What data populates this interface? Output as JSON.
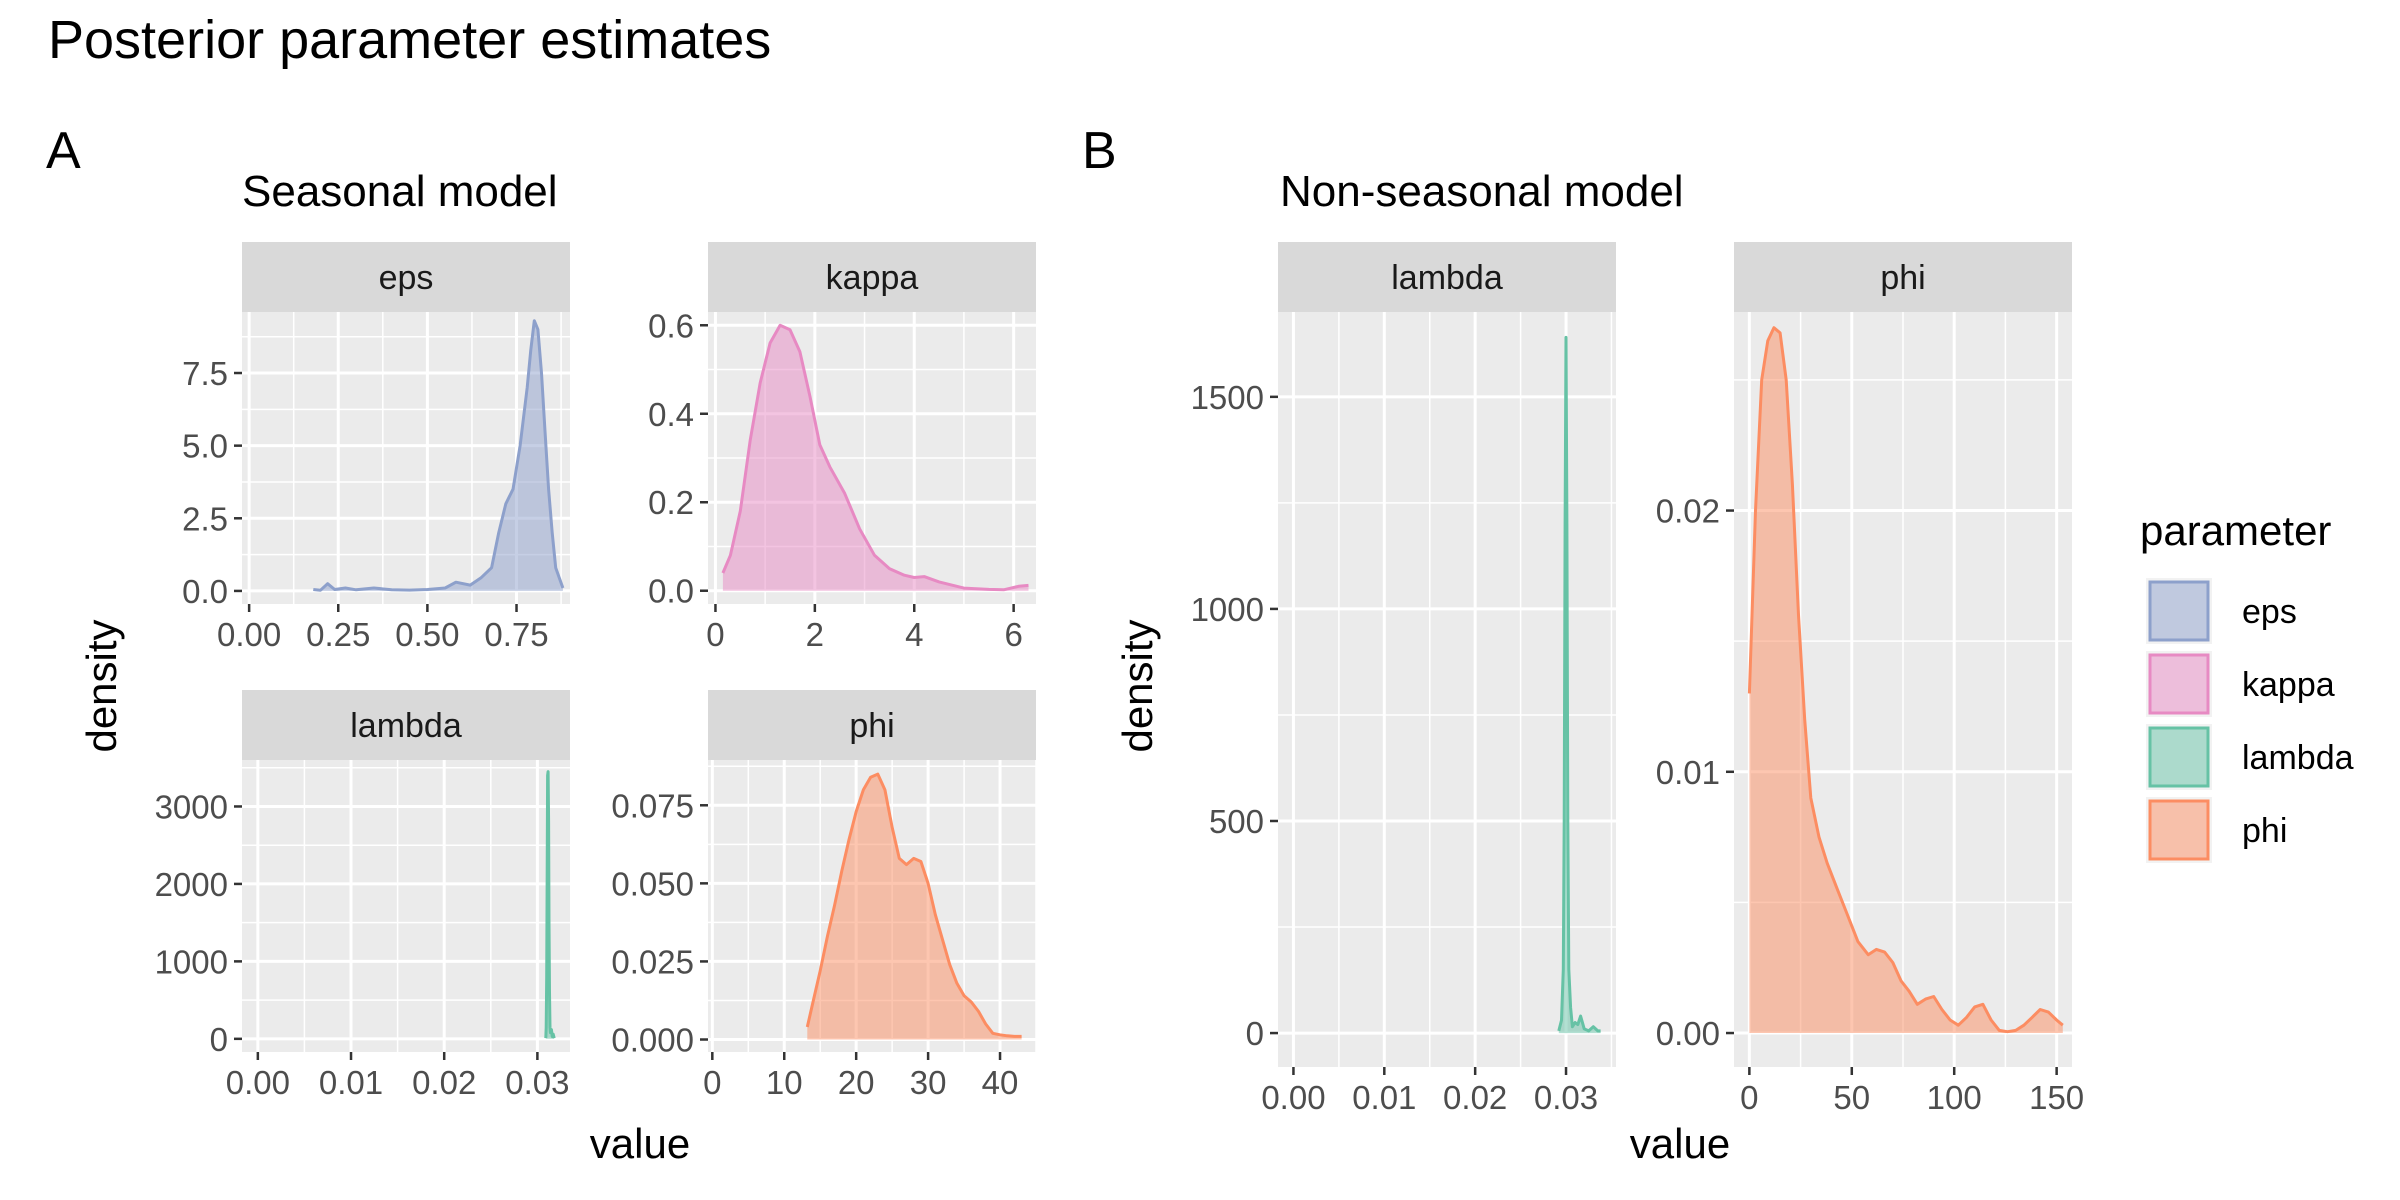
{
  "title": "Posterior parameter estimates",
  "colors": {
    "eps": "#8da0cb",
    "kappa": "#e78ac3",
    "lambda": "#66c2a5",
    "phi": "#fc8d62",
    "panel_bg": "#ebebeb",
    "strip_bg": "#d9d9d9"
  },
  "legend": {
    "title": "parameter",
    "items": [
      "eps",
      "kappa",
      "lambda",
      "phi"
    ]
  },
  "chart_data": [
    {
      "tag": "A",
      "subtitle": "Seasonal model",
      "type": "area",
      "xlabel": "value",
      "ylabel": "density",
      "facets": [
        {
          "strip": "eps",
          "series": "eps",
          "xlim": [
            -0.02,
            0.9
          ],
          "ylim": [
            -0.45,
            9.6
          ],
          "xticks": [
            0,
            0.25,
            0.5,
            0.75
          ],
          "xtick_labels": [
            "0.00",
            "0.25",
            "0.50",
            "0.75"
          ],
          "yticks": [
            0,
            2.5,
            5,
            7.5
          ],
          "ytick_labels": [
            "0.0",
            "2.5",
            "5.0",
            "7.5"
          ],
          "x": [
            0.18,
            0.2,
            0.22,
            0.24,
            0.27,
            0.3,
            0.35,
            0.4,
            0.45,
            0.5,
            0.55,
            0.58,
            0.62,
            0.65,
            0.68,
            0.7,
            0.72,
            0.74,
            0.76,
            0.78,
            0.79,
            0.8,
            0.81,
            0.82,
            0.83,
            0.84,
            0.85,
            0.86,
            0.88
          ],
          "y": [
            0.05,
            0.02,
            0.25,
            0.05,
            0.1,
            0.04,
            0.1,
            0.04,
            0.03,
            0.05,
            0.1,
            0.3,
            0.2,
            0.45,
            0.8,
            2.0,
            3.0,
            3.5,
            5.0,
            7.0,
            8.3,
            9.3,
            9.0,
            7.5,
            5.5,
            3.5,
            2.0,
            0.8,
            0.1
          ]
        },
        {
          "strip": "kappa",
          "series": "kappa",
          "xlim": [
            -0.15,
            6.45
          ],
          "ylim": [
            -0.03,
            0.63
          ],
          "xticks": [
            0,
            2,
            4,
            6
          ],
          "xtick_labels": [
            "0",
            "2",
            "4",
            "6"
          ],
          "yticks": [
            0,
            0.2,
            0.4,
            0.6
          ],
          "ytick_labels": [
            "0.0",
            "0.2",
            "0.4",
            "0.6"
          ],
          "x": [
            0.15,
            0.3,
            0.5,
            0.7,
            0.9,
            1.1,
            1.3,
            1.5,
            1.7,
            1.9,
            2.1,
            2.3,
            2.6,
            2.9,
            3.2,
            3.5,
            3.8,
            4.0,
            4.2,
            4.5,
            5.0,
            5.5,
            5.8,
            6.1,
            6.3
          ],
          "y": [
            0.04,
            0.08,
            0.18,
            0.34,
            0.47,
            0.56,
            0.6,
            0.59,
            0.54,
            0.44,
            0.33,
            0.28,
            0.22,
            0.14,
            0.08,
            0.05,
            0.035,
            0.03,
            0.032,
            0.02,
            0.006,
            0.003,
            0.002,
            0.01,
            0.012
          ]
        },
        {
          "strip": "lambda",
          "series": "lambda",
          "xlim": [
            -0.0017,
            0.0335
          ],
          "ylim": [
            -170,
            3600
          ],
          "xticks": [
            0,
            0.01,
            0.02,
            0.03
          ],
          "xtick_labels": [
            "0.00",
            "0.01",
            "0.02",
            "0.03"
          ],
          "yticks": [
            0,
            1000,
            2000,
            3000
          ],
          "ytick_labels": [
            "0",
            "1000",
            "2000",
            "3000"
          ],
          "x": [
            0.0309,
            0.03095,
            0.031,
            0.03105,
            0.0311,
            0.03115,
            0.0312,
            0.03125,
            0.0313,
            0.03135,
            0.0314,
            0.0315,
            0.0316,
            0.0317,
            0.0318
          ],
          "y": [
            10,
            150,
            800,
            2200,
            3400,
            3450,
            2800,
            1500,
            600,
            150,
            80,
            120,
            30,
            60,
            10
          ]
        },
        {
          "strip": "phi",
          "series": "phi",
          "xlim": [
            -0.6,
            45.0
          ],
          "ylim": [
            -0.004,
            0.0895
          ],
          "xticks": [
            0,
            10,
            20,
            30,
            40
          ],
          "xtick_labels": [
            "0",
            "10",
            "20",
            "30",
            "40"
          ],
          "yticks": [
            0,
            0.025,
            0.05,
            0.075
          ],
          "ytick_labels": [
            "0.000",
            "0.025",
            "0.050",
            "0.075"
          ],
          "x": [
            13.2,
            14,
            15,
            16,
            17,
            18,
            19,
            20,
            21,
            22,
            23,
            24,
            25,
            26,
            27,
            28,
            29,
            30,
            31,
            32,
            33,
            34,
            35,
            36,
            37,
            38,
            39,
            40,
            41,
            42,
            43
          ],
          "y": [
            0.004,
            0.012,
            0.022,
            0.033,
            0.043,
            0.054,
            0.064,
            0.073,
            0.08,
            0.084,
            0.085,
            0.08,
            0.068,
            0.058,
            0.056,
            0.058,
            0.057,
            0.05,
            0.04,
            0.032,
            0.024,
            0.018,
            0.014,
            0.012,
            0.009,
            0.005,
            0.002,
            0.0015,
            0.0012,
            0.001,
            0.001
          ]
        }
      ]
    },
    {
      "tag": "B",
      "subtitle": "Non-seasonal model",
      "type": "area",
      "xlabel": "value",
      "ylabel": "density",
      "facets": [
        {
          "strip": "lambda",
          "series": "lambda",
          "xlim": [
            -0.0017,
            0.0355
          ],
          "ylim": [
            -80,
            1700
          ],
          "xticks": [
            0,
            0.01,
            0.02,
            0.03
          ],
          "xtick_labels": [
            "0.00",
            "0.01",
            "0.02",
            "0.03"
          ],
          "yticks": [
            0,
            500,
            1000,
            1500
          ],
          "ytick_labels": [
            "0",
            "500",
            "1000",
            "1500"
          ],
          "x": [
            0.0292,
            0.0295,
            0.0297,
            0.0298,
            0.0299,
            0.03,
            0.0301,
            0.0302,
            0.0303,
            0.0305,
            0.0307,
            0.031,
            0.0313,
            0.0316,
            0.032,
            0.0325,
            0.033,
            0.0335,
            0.0338
          ],
          "y": [
            5,
            30,
            150,
            500,
            1200,
            1640,
            1200,
            500,
            150,
            60,
            15,
            25,
            20,
            40,
            10,
            5,
            15,
            5,
            5
          ],
          "ticks_pseudo_log": false
        },
        {
          "strip": "phi",
          "series": "phi",
          "xlim": [
            -7.5,
            157.5
          ],
          "ylim": [
            -0.0013,
            0.0276
          ],
          "xticks": [
            0,
            50,
            100,
            150
          ],
          "xtick_labels": [
            "0",
            "50",
            "100",
            "150"
          ],
          "yticks": [
            0,
            0.01,
            0.02
          ],
          "ytick_labels": [
            "0.00",
            "0.01",
            "0.02"
          ],
          "x": [
            0,
            3,
            6,
            9,
            12,
            15,
            18,
            21,
            24,
            27,
            30,
            34,
            38,
            43,
            48,
            53,
            58,
            62,
            66,
            70,
            74,
            78,
            82,
            86,
            90,
            94,
            98,
            102,
            106,
            110,
            114,
            118,
            122,
            126,
            130,
            134,
            138,
            142,
            146,
            150,
            153
          ],
          "y": [
            0.013,
            0.02,
            0.025,
            0.0265,
            0.027,
            0.0268,
            0.025,
            0.021,
            0.016,
            0.012,
            0.009,
            0.0075,
            0.0065,
            0.0055,
            0.0045,
            0.0035,
            0.003,
            0.0032,
            0.0031,
            0.0027,
            0.002,
            0.0016,
            0.0011,
            0.0013,
            0.0014,
            0.0009,
            0.0005,
            0.0003,
            0.0006,
            0.001,
            0.0011,
            0.0005,
            0.0001,
            5e-05,
            0.0001,
            0.0003,
            0.0006,
            0.0009,
            0.0008,
            0.0005,
            0.0003
          ]
        }
      ]
    }
  ]
}
